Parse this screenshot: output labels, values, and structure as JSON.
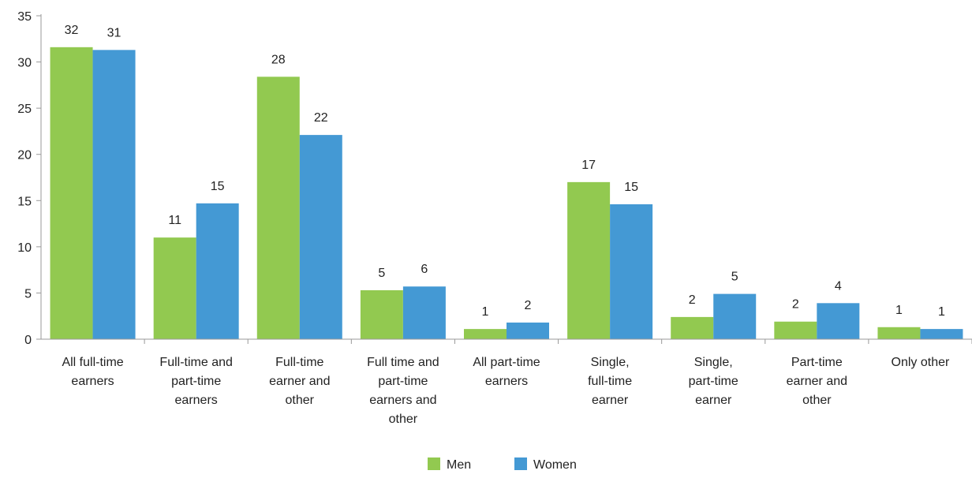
{
  "chart_data": {
    "type": "bar",
    "categories": [
      [
        "All full-time",
        "earners"
      ],
      [
        "Full-time and",
        "part-time",
        "earners"
      ],
      [
        "Full-time",
        "earner and",
        "other"
      ],
      [
        "Full time and",
        "part-time",
        "earners and",
        "other"
      ],
      [
        "All part-time",
        "earners"
      ],
      [
        "Single,",
        "full-time",
        "earner"
      ],
      [
        "Single,",
        "part-time",
        "earner"
      ],
      [
        "Part-time",
        "earner and",
        "other"
      ],
      [
        "Only other"
      ]
    ],
    "series": [
      {
        "name": "Men",
        "color": "#92c950",
        "values": [
          31.6,
          11.0,
          28.4,
          5.3,
          1.1,
          17.0,
          2.4,
          1.9,
          1.3
        ],
        "labels": [
          "32",
          "11",
          "28",
          "5",
          "1",
          "17",
          "2",
          "2",
          "1"
        ]
      },
      {
        "name": "Women",
        "color": "#4499d4",
        "values": [
          31.3,
          14.7,
          22.1,
          5.7,
          1.8,
          14.6,
          4.9,
          3.9,
          1.1
        ],
        "labels": [
          "31",
          "15",
          "22",
          "6",
          "2",
          "15",
          "5",
          "4",
          "1"
        ]
      }
    ],
    "ylim": [
      0,
      35
    ],
    "yticks": [
      "0",
      "5",
      "10",
      "15",
      "20",
      "25",
      "30",
      "35"
    ],
    "grid": false,
    "legend_position": "bottom-center",
    "title": "",
    "xlabel": "",
    "ylabel": ""
  }
}
